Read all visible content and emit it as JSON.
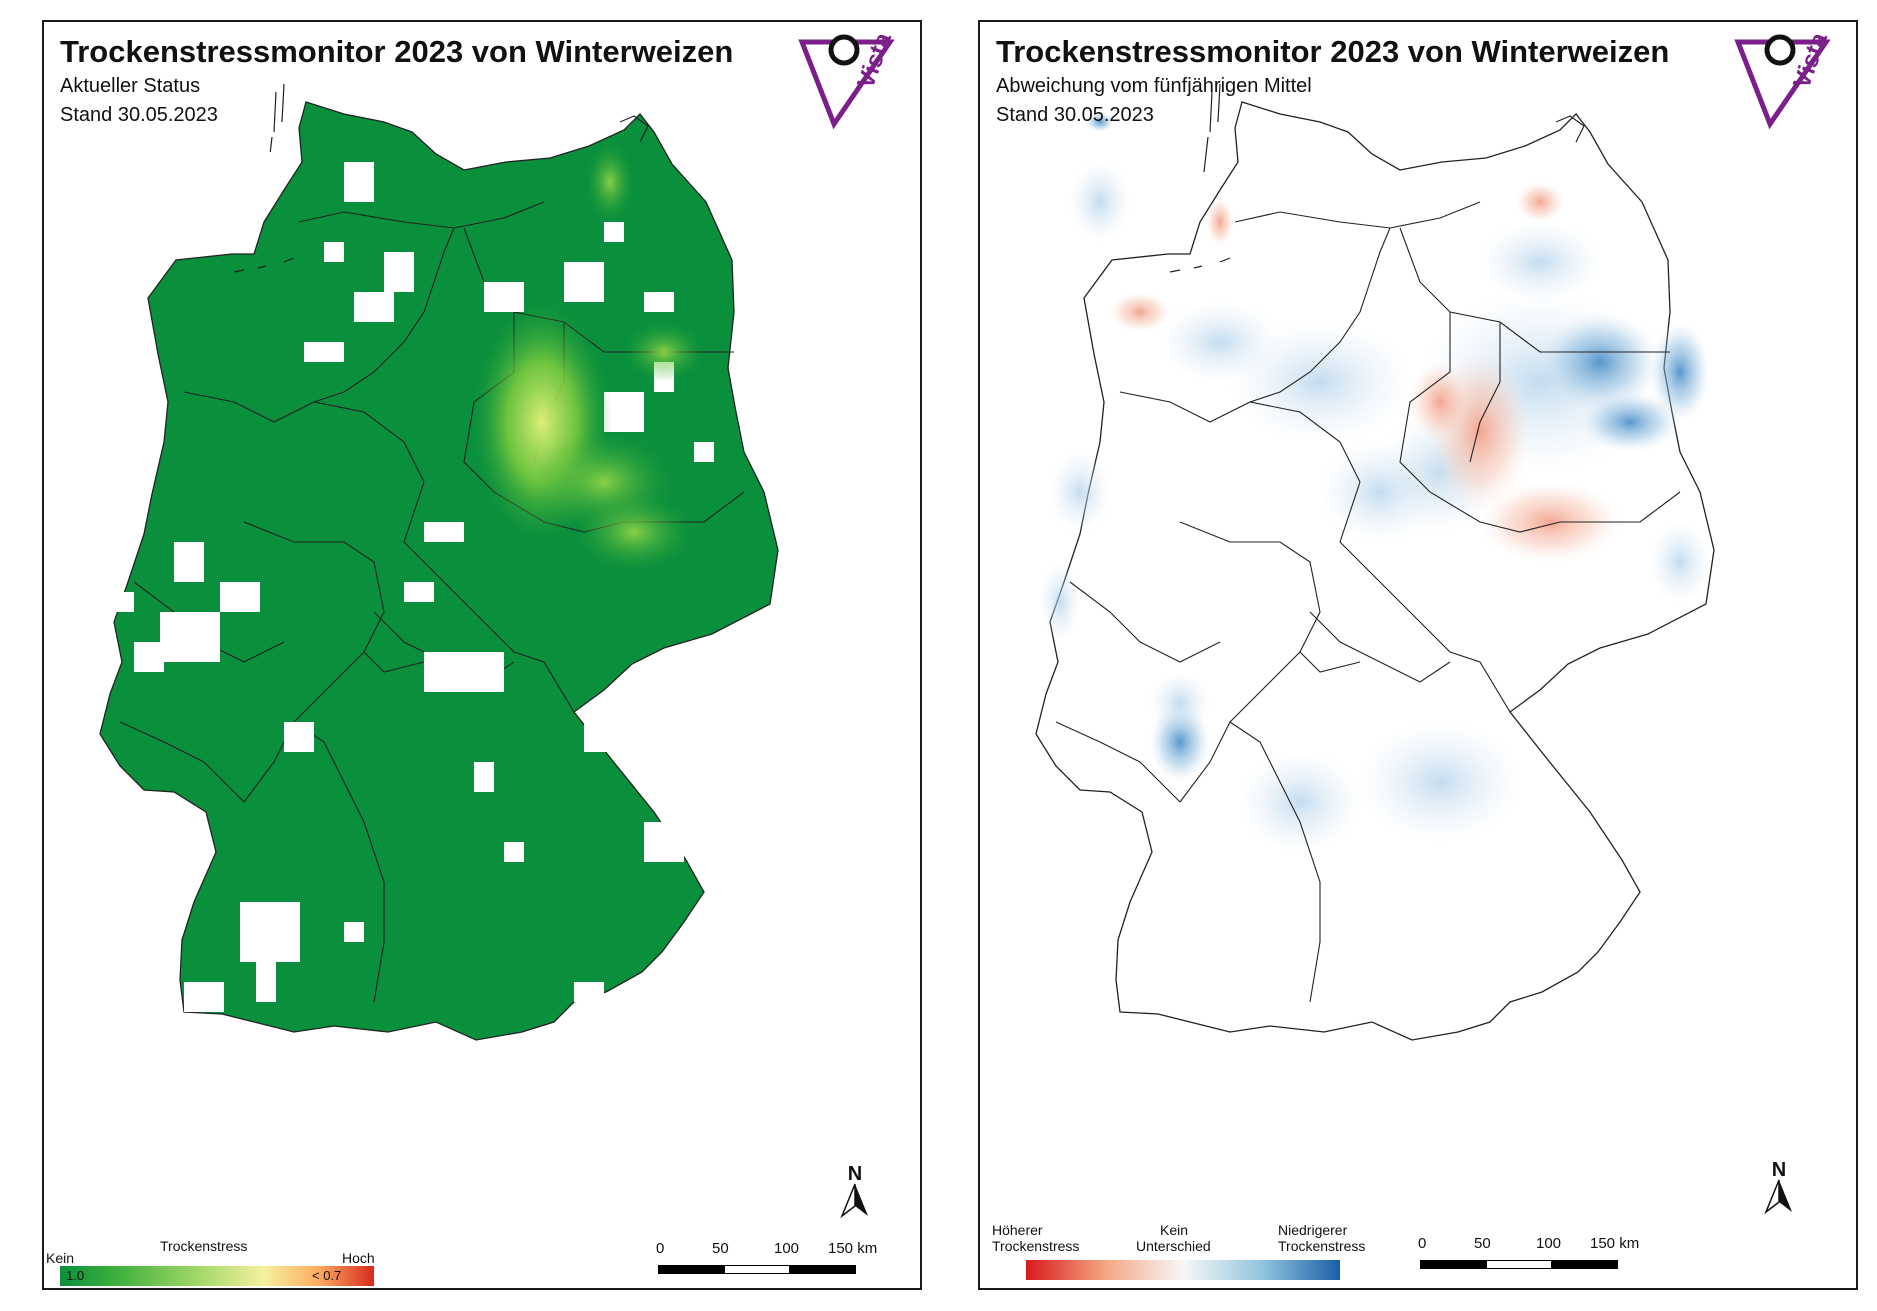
{
  "colors": {
    "frame": "#1a1a1a",
    "logo_purple": "#7b1f8a",
    "stress_none": "#0a8f3c",
    "stress_low": "#7bcf3f",
    "stress_mid": "#f5f0a0",
    "stress_high": "#d62a1f",
    "diff_higher": "#d7191c",
    "diff_none": "#f5f5f5",
    "diff_lower": "#1a5fa8"
  },
  "left_panel": {
    "title": "Trockenstressmonitor 2023 von Winterweizen",
    "subtitle": "Aktueller Status",
    "date": "Stand 30.05.2023",
    "logo_text": "Vista",
    "north_label": "N",
    "legend": {
      "title": "Trockenstress",
      "low_label": "Kein",
      "high_label": "Hoch",
      "min_value": "1.0",
      "max_value": "< 0.7"
    },
    "scale": {
      "ticks": [
        "0",
        "50",
        "100",
        "150 km"
      ]
    }
  },
  "right_panel": {
    "title": "Trockenstressmonitor 2023 von Winterweizen",
    "subtitle": "Abweichung vom fünfjährigen Mittel",
    "date": "Stand 30.05.2023",
    "logo_text": "Vista",
    "north_label": "N",
    "legend": {
      "left_label_line1": "Höherer",
      "left_label_line2": "Trockenstress",
      "mid_label_line1": "Kein",
      "mid_label_line2": "Unterschied",
      "right_label_line1": "Niedrigerer",
      "right_label_line2": "Trockenstress"
    },
    "scale": {
      "ticks": [
        "0",
        "50",
        "100",
        "150 km"
      ]
    }
  }
}
